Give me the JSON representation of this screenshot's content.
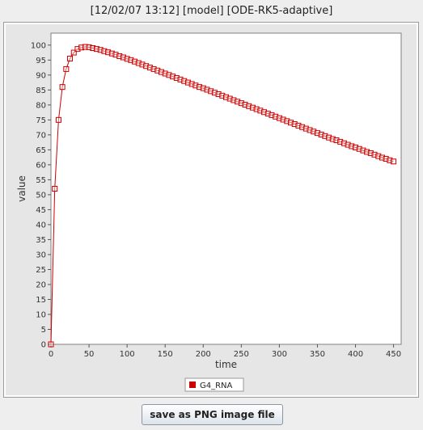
{
  "window": {
    "title": "[12/02/07 13:12] [model] [ODE-RK5-adaptive]"
  },
  "toolbar": {
    "save_label": "save as PNG image file"
  },
  "colors": {
    "series": "#cc0000",
    "plot_background": "#ffffff",
    "panel_background": "#e6e6e6"
  },
  "chart_data": {
    "type": "line",
    "title": "",
    "xlabel": "time",
    "ylabel": "value",
    "xlim": [
      0,
      460
    ],
    "ylim": [
      0,
      104
    ],
    "x_ticks": [
      0,
      50,
      100,
      150,
      200,
      250,
      300,
      350,
      400,
      450
    ],
    "y_ticks": [
      0,
      5,
      10,
      15,
      20,
      25,
      30,
      35,
      40,
      45,
      50,
      55,
      60,
      65,
      70,
      75,
      80,
      85,
      90,
      95,
      100
    ],
    "grid": false,
    "legend": "bottom-center",
    "marker": "open-square",
    "series": [
      {
        "name": "G4_RNA",
        "x": [
          0,
          5,
          10,
          15,
          20,
          25,
          30,
          35,
          40,
          45,
          50,
          55,
          60,
          65,
          70,
          75,
          80,
          85,
          90,
          95,
          100,
          105,
          110,
          115,
          120,
          125,
          130,
          135,
          140,
          145,
          150,
          155,
          160,
          165,
          170,
          175,
          180,
          185,
          190,
          195,
          200,
          205,
          210,
          215,
          220,
          225,
          230,
          235,
          240,
          245,
          250,
          255,
          260,
          265,
          270,
          275,
          280,
          285,
          290,
          295,
          300,
          305,
          310,
          315,
          320,
          325,
          330,
          335,
          340,
          345,
          350,
          355,
          360,
          365,
          370,
          375,
          380,
          385,
          390,
          395,
          400,
          405,
          410,
          415,
          420,
          425,
          430,
          435,
          440,
          445,
          450
        ],
        "values": [
          0,
          52,
          75,
          86,
          92,
          95.5,
          97.5,
          98.7,
          99.2,
          99.4,
          99.3,
          99.0,
          98.7,
          98.4,
          98.0,
          97.6,
          97.2,
          96.8,
          96.3,
          95.9,
          95.4,
          95.0,
          94.5,
          94.0,
          93.5,
          93.0,
          92.5,
          92.0,
          91.5,
          91.0,
          90.5,
          90.0,
          89.5,
          89.0,
          88.5,
          88.0,
          87.5,
          87.0,
          86.5,
          86.0,
          85.6,
          85.1,
          84.6,
          84.1,
          83.6,
          83.1,
          82.6,
          82.1,
          81.6,
          81.1,
          80.6,
          80.1,
          79.6,
          79.1,
          78.6,
          78.1,
          77.6,
          77.1,
          76.6,
          76.1,
          75.6,
          75.1,
          74.6,
          74.1,
          73.6,
          73.1,
          72.6,
          72.1,
          71.6,
          71.1,
          70.6,
          70.1,
          69.6,
          69.1,
          68.6,
          68.2,
          67.7,
          67.2,
          66.7,
          66.2,
          65.8,
          65.3,
          64.8,
          64.3,
          63.9,
          63.4,
          62.9,
          62.4,
          62.0,
          61.5,
          61.1
        ]
      }
    ]
  }
}
